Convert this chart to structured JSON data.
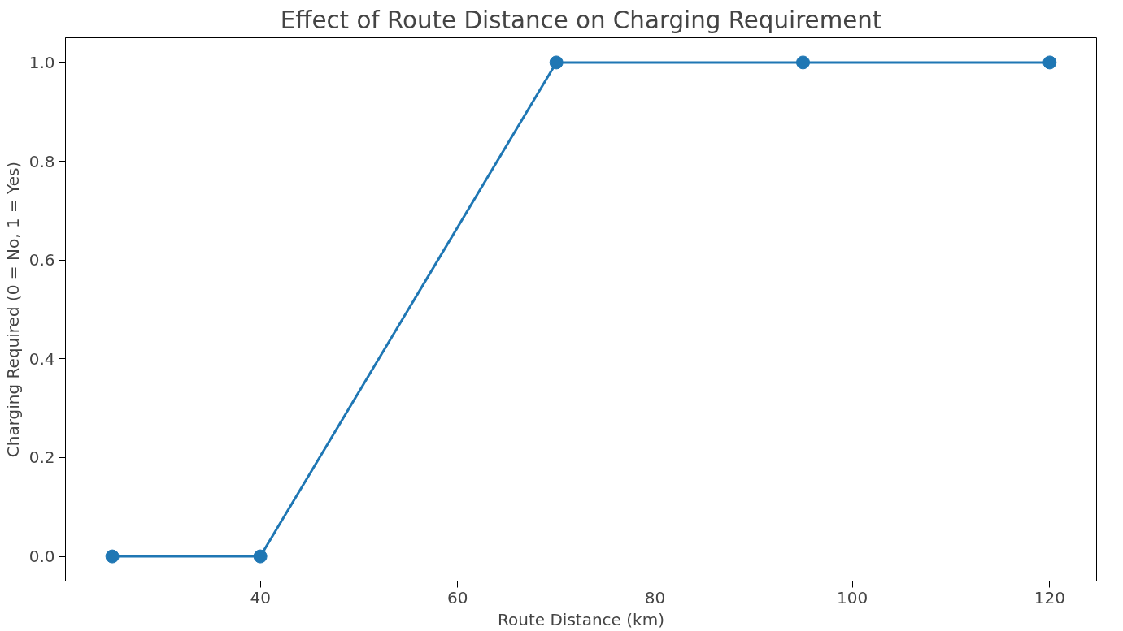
{
  "chart_data": {
    "type": "line",
    "title": "Effect of Route Distance on Charging Requirement",
    "xlabel": "Route Distance (km)",
    "ylabel": "Charging Required (0 = No, 1 = Yes)",
    "x": [
      25,
      40,
      70,
      95,
      120
    ],
    "series": [
      {
        "color": "#1f77b4",
        "values": [
          0,
          0,
          1,
          1,
          1
        ]
      }
    ],
    "xlim": [
      20.25,
      124.75
    ],
    "xticks": [
      40,
      60,
      80,
      100,
      120
    ],
    "ylim": [
      -0.05,
      1.05
    ],
    "yticks": [
      {
        "value": 0,
        "label": "0.0"
      },
      {
        "value": 0.2,
        "label": "0.2"
      },
      {
        "value": 0.4,
        "label": "0.4"
      },
      {
        "value": 0.6,
        "label": "0.6"
      },
      {
        "value": 0.8,
        "label": "0.8"
      },
      {
        "value": 1,
        "label": "1.0"
      }
    ],
    "grid": false,
    "marker": "circle",
    "line_style": "solid"
  }
}
